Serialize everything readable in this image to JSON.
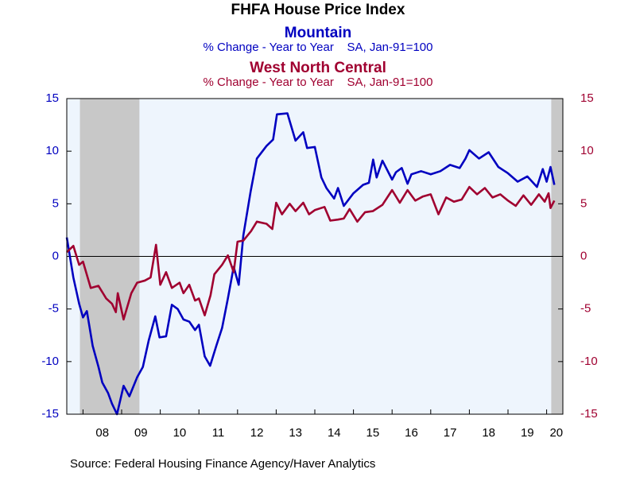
{
  "chart_data": {
    "type": "line",
    "title": "FHFA House Price Index",
    "source": "Source:  Federal Housing Finance Agency/Haver Analytics",
    "xlim": [
      2007.58,
      2020.42
    ],
    "xticks": [
      {
        "value": 2008,
        "label": "08"
      },
      {
        "value": 2009,
        "label": "09"
      },
      {
        "value": 2010,
        "label": "10"
      },
      {
        "value": 2011,
        "label": "11"
      },
      {
        "value": 2012,
        "label": "12"
      },
      {
        "value": 2013,
        "label": "13"
      },
      {
        "value": 2014,
        "label": "14"
      },
      {
        "value": 2015,
        "label": "15"
      },
      {
        "value": 2016,
        "label": "16"
      },
      {
        "value": 2017,
        "label": "17"
      },
      {
        "value": 2018,
        "label": "18"
      },
      {
        "value": 2019,
        "label": "19"
      },
      {
        "value": 2020,
        "label": "20"
      }
    ],
    "ylim": [
      -15,
      15
    ],
    "yticks": [
      -15,
      -10,
      -5,
      0,
      5,
      10,
      15
    ],
    "y2lim": [
      -15,
      15
    ],
    "y2ticks": [
      -15,
      -10,
      -5,
      0,
      5,
      10,
      15
    ],
    "recessions": [
      [
        2007.92,
        2009.46
      ],
      [
        2020.12,
        2020.42
      ]
    ],
    "series": [
      {
        "name": "Mountain",
        "subtitle": "% Change - Year to Year    SA, Jan-91=100",
        "color": "#0000c0",
        "x": [
          2007.58,
          2007.75,
          2007.9,
          2008.0,
          2008.1,
          2008.25,
          2008.4,
          2008.5,
          2008.65,
          2008.75,
          2008.88,
          2009.05,
          2009.2,
          2009.4,
          2009.55,
          2009.7,
          2009.87,
          2009.98,
          2010.15,
          2010.3,
          2010.45,
          2010.6,
          2010.75,
          2010.9,
          2011.0,
          2011.15,
          2011.29,
          2011.45,
          2011.6,
          2011.75,
          2011.9,
          2012.03,
          2012.15,
          2012.34,
          2012.5,
          2012.75,
          2012.92,
          2013.02,
          2013.29,
          2013.5,
          2013.7,
          2013.8,
          2014.0,
          2014.17,
          2014.3,
          2014.5,
          2014.6,
          2014.75,
          2015.0,
          2015.25,
          2015.4,
          2015.51,
          2015.6,
          2015.75,
          2016.0,
          2016.1,
          2016.25,
          2016.4,
          2016.5,
          2016.75,
          2017.0,
          2017.25,
          2017.5,
          2017.75,
          2017.9,
          2018.0,
          2018.25,
          2018.5,
          2018.75,
          2019.0,
          2019.25,
          2019.5,
          2019.75,
          2019.9,
          2020.0,
          2020.1,
          2020.2
        ],
        "values": [
          1.8,
          -2.0,
          -4.5,
          -5.8,
          -5.2,
          -8.5,
          -10.5,
          -12.0,
          -13.0,
          -14.0,
          -15.0,
          -12.3,
          -13.3,
          -11.5,
          -10.5,
          -8.0,
          -5.7,
          -7.7,
          -7.6,
          -4.6,
          -5.0,
          -6.0,
          -6.2,
          -7.0,
          -6.5,
          -9.5,
          -10.4,
          -8.5,
          -6.8,
          -4.0,
          -1.0,
          -2.7,
          2.0,
          6.2,
          9.3,
          10.5,
          11.1,
          13.5,
          13.6,
          11.0,
          11.8,
          10.3,
          10.4,
          7.5,
          6.5,
          5.5,
          6.5,
          4.8,
          6.0,
          6.8,
          7.0,
          9.2,
          7.5,
          9.1,
          7.3,
          8.0,
          8.4,
          6.9,
          7.8,
          8.1,
          7.8,
          8.1,
          8.7,
          8.4,
          9.3,
          10.1,
          9.3,
          9.9,
          8.5,
          7.9,
          7.1,
          7.6,
          6.6,
          8.3,
          7.1,
          8.5,
          6.8
        ]
      },
      {
        "name": "West North Central",
        "subtitle": "% Change - Year to Year    SA, Jan-91=100",
        "color": "#a00030",
        "axis": "y2",
        "x": [
          2007.58,
          2007.75,
          2007.9,
          2008.0,
          2008.2,
          2008.4,
          2008.6,
          2008.75,
          2008.85,
          2008.9,
          2009.05,
          2009.25,
          2009.4,
          2009.6,
          2009.75,
          2009.89,
          2010.0,
          2010.15,
          2010.3,
          2010.5,
          2010.6,
          2010.75,
          2010.9,
          2011.0,
          2011.15,
          2011.3,
          2011.4,
          2011.6,
          2011.75,
          2011.9,
          2012.0,
          2012.15,
          2012.35,
          2012.5,
          2012.75,
          2012.9,
          2013.0,
          2013.15,
          2013.35,
          2013.5,
          2013.7,
          2013.85,
          2014.0,
          2014.25,
          2014.4,
          2014.6,
          2014.75,
          2014.9,
          2015.1,
          2015.3,
          2015.5,
          2015.75,
          2016.0,
          2016.2,
          2016.4,
          2016.6,
          2016.8,
          2017.0,
          2017.2,
          2017.4,
          2017.6,
          2017.8,
          2018.0,
          2018.2,
          2018.4,
          2018.6,
          2018.8,
          2019.0,
          2019.2,
          2019.4,
          2019.6,
          2019.8,
          2019.95,
          2020.05,
          2020.1,
          2020.2
        ],
        "values": [
          0.4,
          1.0,
          -0.8,
          -0.5,
          -3.0,
          -2.8,
          -4.0,
          -4.5,
          -5.3,
          -3.5,
          -6.0,
          -3.5,
          -2.5,
          -2.3,
          -2.0,
          1.1,
          -2.7,
          -1.5,
          -3.0,
          -2.5,
          -3.5,
          -2.7,
          -4.2,
          -4.0,
          -5.6,
          -3.7,
          -1.7,
          -0.8,
          0.1,
          -1.5,
          1.4,
          1.5,
          2.4,
          3.3,
          3.1,
          2.6,
          5.1,
          4.0,
          5.0,
          4.3,
          5.1,
          4.0,
          4.4,
          4.7,
          3.4,
          3.5,
          3.6,
          4.5,
          3.3,
          4.2,
          4.3,
          4.9,
          6.3,
          5.1,
          6.3,
          5.3,
          5.7,
          5.9,
          4.0,
          5.6,
          5.2,
          5.4,
          6.6,
          5.9,
          6.5,
          5.6,
          5.9,
          5.3,
          4.8,
          5.8,
          4.9,
          5.9,
          5.2,
          6.0,
          4.6,
          5.3
        ]
      }
    ]
  }
}
